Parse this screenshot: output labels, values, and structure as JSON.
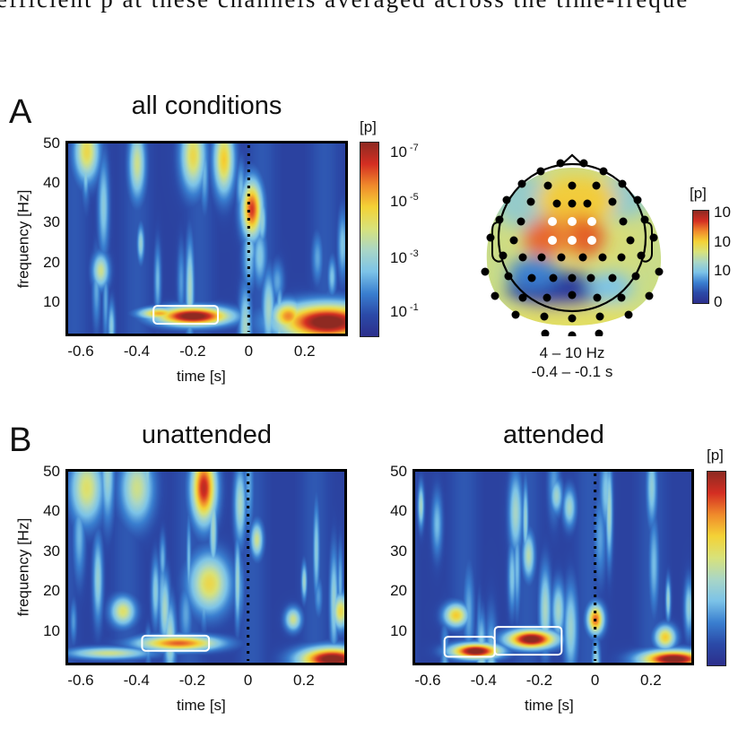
{
  "page": {
    "top_text": "efficient p at these channels averaged across the time-freque"
  },
  "colormap": [
    "#2c2f8c",
    "#2b4aa8",
    "#3a7fd0",
    "#7cc3e8",
    "#a9d6c6",
    "#d8e27a",
    "#f4d236",
    "#f08a2b",
    "#d42e22",
    "#8e2a22"
  ],
  "chart_data": [
    {
      "id": "A-all-conditions",
      "type": "heatmap",
      "panel_letter": "A",
      "title": "all conditions",
      "xlabel": "time [s]",
      "ylabel": "frequency [Hz]",
      "xlim": [
        -0.645,
        0.345
      ],
      "ylim": [
        2,
        50
      ],
      "xticks": [
        "-0.6",
        "-0.4",
        "-0.2",
        "0",
        "0.2"
      ],
      "xtick_values": [
        -0.6,
        -0.4,
        -0.2,
        0,
        0.2
      ],
      "yticks": [
        "10",
        "20",
        "30",
        "40",
        "50"
      ],
      "ytick_values": [
        10,
        20,
        30,
        40,
        50
      ],
      "event_marker_time": 0,
      "colorbar": {
        "unit": "[p]",
        "labels": [
          {
            "base": "10",
            "exp": "-7"
          },
          {
            "base": "10",
            "exp": "-5"
          },
          {
            "base": "10",
            "exp": "-3"
          },
          {
            "base": "10",
            "exp": "-1"
          }
        ],
        "log10_range": [
          0,
          -8
        ]
      },
      "blobs": [
        {
          "t": -0.2,
          "f": 6.5,
          "wt": 0.09,
          "wf": 1.6,
          "level": 1.0
        },
        {
          "t": -0.32,
          "f": 7.2,
          "wt": 0.05,
          "wf": 1.0,
          "level": 0.65
        },
        {
          "t": 0.28,
          "f": 5,
          "wt": 0.12,
          "wf": 3.2,
          "level": 1.0
        },
        {
          "t": 0.14,
          "f": 6.5,
          "wt": 0.04,
          "wf": 2.5,
          "level": 0.7
        },
        {
          "t": 0.01,
          "f": 33.5,
          "wt": 0.025,
          "wf": 5,
          "level": 0.8
        },
        {
          "t": -0.58,
          "f": 48,
          "wt": 0.03,
          "wf": 5,
          "level": 0.55
        },
        {
          "t": -0.2,
          "f": 47,
          "wt": 0.03,
          "wf": 6,
          "level": 0.55
        },
        {
          "t": -0.09,
          "f": 46,
          "wt": 0.025,
          "wf": 6,
          "level": 0.6
        },
        {
          "t": -0.53,
          "f": 18,
          "wt": 0.02,
          "wf": 3,
          "level": 0.45
        },
        {
          "t": -0.4,
          "f": 45,
          "wt": 0.02,
          "wf": 6,
          "level": 0.45
        }
      ],
      "significant_clusters": [
        {
          "t_range": [
            -0.34,
            -0.11
          ],
          "f_range": [
            4.5,
            9
          ]
        }
      ]
    },
    {
      "id": "topoplot",
      "type": "heatmap",
      "title": "",
      "caption_freq": "4 – 10 Hz",
      "caption_time": "-0.4 – -0.1 s",
      "colorbar": {
        "unit": "[p]",
        "labels": [
          "10",
          "10",
          "10",
          "0"
        ]
      },
      "highlighted_channels": 6,
      "regions": [
        {
          "name": "frontal-central",
          "value": "high"
        },
        {
          "name": "occipital",
          "value": "low"
        }
      ]
    },
    {
      "id": "B-unattended",
      "type": "heatmap",
      "panel_letter": "B",
      "title": "unattended",
      "xlabel": "time [s]",
      "ylabel": "frequency [Hz]",
      "xlim": [
        -0.645,
        0.345
      ],
      "ylim": [
        2,
        50
      ],
      "xticks": [
        "-0.6",
        "-0.4",
        "-0.2",
        "0",
        "0.2"
      ],
      "xtick_values": [
        -0.6,
        -0.4,
        -0.2,
        0,
        0.2
      ],
      "yticks": [
        "10",
        "20",
        "30",
        "40",
        "50"
      ],
      "ytick_values": [
        10,
        20,
        30,
        40,
        50
      ],
      "event_marker_time": 0,
      "blobs": [
        {
          "t": -0.25,
          "f": 7,
          "wt": 0.1,
          "wf": 1.3,
          "level": 0.75
        },
        {
          "t": -0.16,
          "f": 46,
          "wt": 0.03,
          "wf": 6,
          "level": 0.85
        },
        {
          "t": -0.14,
          "f": 22,
          "wt": 0.05,
          "wf": 5,
          "level": 0.55
        },
        {
          "t": -0.45,
          "f": 15,
          "wt": 0.03,
          "wf": 2.5,
          "level": 0.5
        },
        {
          "t": 0.3,
          "f": 3,
          "wt": 0.08,
          "wf": 2,
          "level": 1.0
        },
        {
          "t": 0.33,
          "f": 15,
          "wt": 0.02,
          "wf": 3,
          "level": 0.55
        },
        {
          "t": 0.16,
          "f": 13,
          "wt": 0.02,
          "wf": 2,
          "level": 0.45
        },
        {
          "t": -0.58,
          "f": 46,
          "wt": 0.04,
          "wf": 6,
          "level": 0.5
        },
        {
          "t": -0.4,
          "f": 46,
          "wt": 0.04,
          "wf": 6,
          "level": 0.45
        },
        {
          "t": 0.03,
          "f": 33,
          "wt": 0.015,
          "wf": 3,
          "level": 0.45
        },
        {
          "t": -0.5,
          "f": 4.5,
          "wt": 0.1,
          "wf": 1,
          "level": 0.45
        }
      ],
      "significant_clusters": [
        {
          "t_range": [
            -0.38,
            -0.14
          ],
          "f_range": [
            5,
            8.8
          ]
        }
      ]
    },
    {
      "id": "B-attended",
      "type": "heatmap",
      "title": "attended",
      "xlabel": "time [s]",
      "ylabel": "",
      "xlim": [
        -0.645,
        0.345
      ],
      "ylim": [
        2,
        50
      ],
      "xticks": [
        "-0.6",
        "-0.4",
        "-0.2",
        "0",
        "0.2"
      ],
      "xtick_values": [
        -0.6,
        -0.4,
        -0.2,
        0,
        0.2
      ],
      "yticks": [
        "10",
        "20",
        "30",
        "40",
        "50"
      ],
      "ytick_values": [
        10,
        20,
        30,
        40,
        50
      ],
      "event_marker_time": 0,
      "colorbar": {
        "unit": "[p]"
      },
      "blobs": [
        {
          "t": -0.43,
          "f": 5,
          "wt": 0.06,
          "wf": 1.3,
          "level": 1.0
        },
        {
          "t": -0.23,
          "f": 8,
          "wt": 0.06,
          "wf": 1.6,
          "level": 1.0
        },
        {
          "t": -0.5,
          "f": 14,
          "wt": 0.03,
          "wf": 2,
          "level": 0.6
        },
        {
          "t": 0.0,
          "f": 13,
          "wt": 0.02,
          "wf": 2.5,
          "level": 0.75
        },
        {
          "t": 0.25,
          "f": 8.5,
          "wt": 0.025,
          "wf": 2,
          "level": 0.6
        },
        {
          "t": 0.28,
          "f": 3,
          "wt": 0.08,
          "wf": 1.5,
          "level": 1.0
        },
        {
          "t": -0.24,
          "f": 29,
          "wt": 0.015,
          "wf": 4,
          "level": 0.4
        },
        {
          "t": -0.14,
          "f": 44,
          "wt": 0.015,
          "wf": 3,
          "level": 0.35
        }
      ],
      "significant_clusters": [
        {
          "t_range": [
            -0.54,
            -0.36
          ],
          "f_range": [
            3.5,
            8.5
          ]
        },
        {
          "t_range": [
            -0.36,
            -0.12
          ],
          "f_range": [
            4,
            11
          ]
        }
      ]
    }
  ]
}
